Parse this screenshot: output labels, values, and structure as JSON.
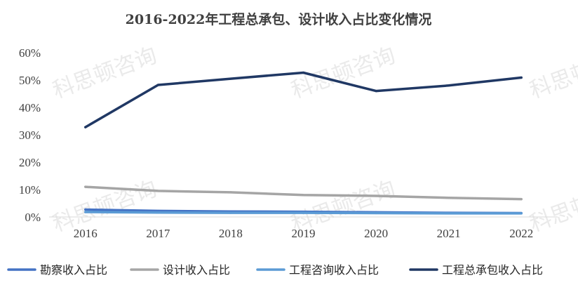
{
  "chart_data": {
    "type": "line",
    "title": "2016-2022年工程总承包、设计收入占比变化情况",
    "categories": [
      "2016",
      "2017",
      "2018",
      "2019",
      "2020",
      "2021",
      "2022"
    ],
    "y_ticks": [
      "0%",
      "10%",
      "20%",
      "30%",
      "40%",
      "50%",
      "60%"
    ],
    "ylim": [
      0,
      60
    ],
    "grid": false,
    "legend_position": "bottom",
    "series": [
      {
        "name": "勘察收入占比",
        "color": "#4472C4",
        "values": [
          2.7,
          2.2,
          2.0,
          1.9,
          1.7,
          1.5,
          1.4
        ]
      },
      {
        "name": "设计收入占比",
        "color": "#A5A5A5",
        "values": [
          11.0,
          9.5,
          9.0,
          8.0,
          7.7,
          7.0,
          6.5
        ]
      },
      {
        "name": "工程咨询收入占比",
        "color": "#5B9BD5",
        "values": [
          1.8,
          1.6,
          1.5,
          1.5,
          1.4,
          1.3,
          1.3
        ]
      },
      {
        "name": "工程总承包收入占比",
        "color": "#203864",
        "values": [
          32.8,
          48.2,
          50.5,
          52.7,
          46.0,
          48.0,
          50.9
        ]
      }
    ]
  },
  "watermark": "科思顿咨询"
}
